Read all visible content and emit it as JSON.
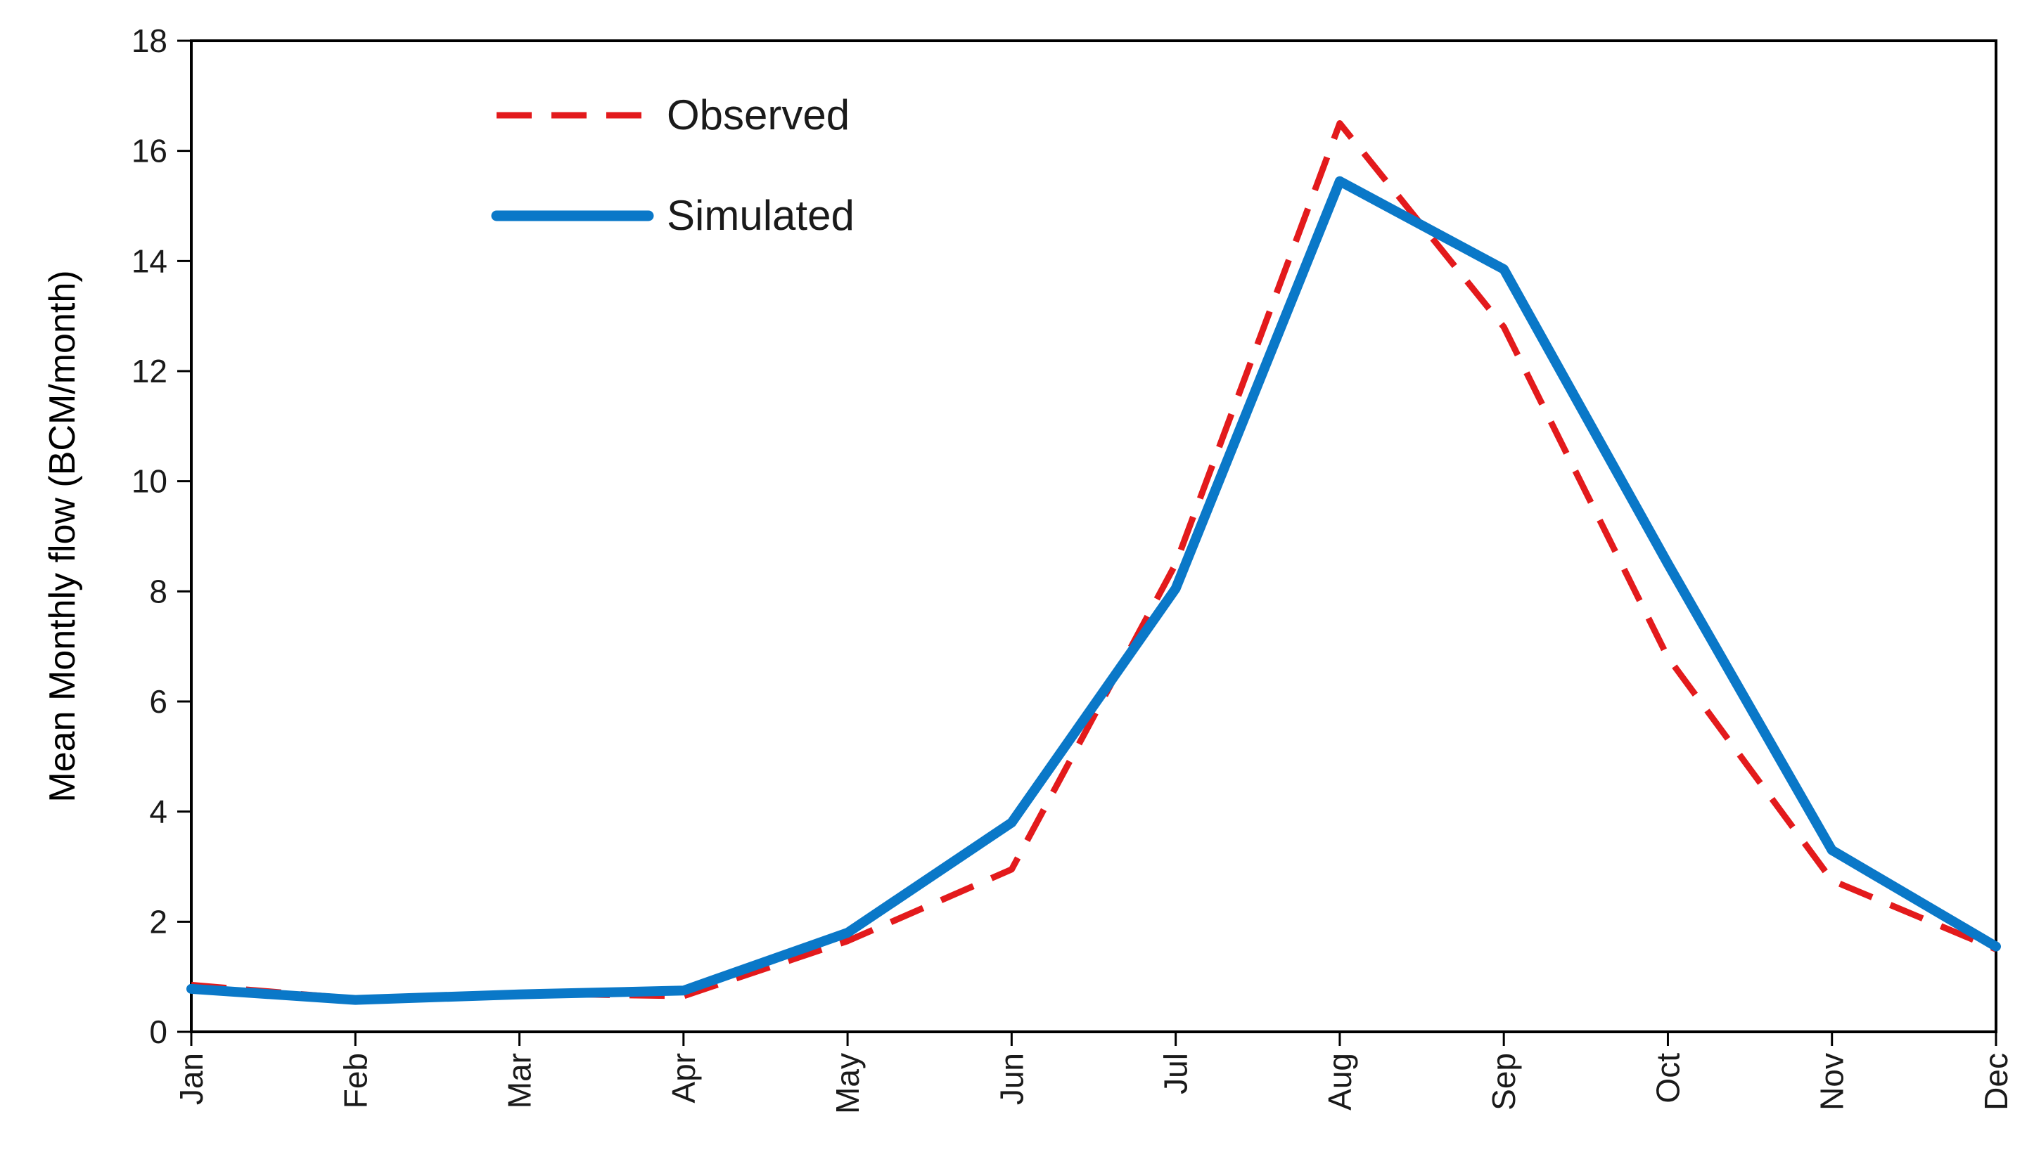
{
  "chart_data": {
    "type": "line",
    "title": "",
    "xlabel": "",
    "ylabel": "Mean Monthly flow (BCM/month)",
    "categories": [
      "Jan",
      "Feb",
      "Mar",
      "Apr",
      "May",
      "Jun",
      "Jul",
      "Aug",
      "Sep",
      "Oct",
      "Nov",
      "Dec"
    ],
    "ylim": [
      0,
      18
    ],
    "yticks": [
      0,
      2,
      4,
      6,
      8,
      10,
      12,
      14,
      16,
      18
    ],
    "grid": false,
    "legend_position": "top-left",
    "series": [
      {
        "name": "Observed",
        "style": "dashed",
        "color": "#e31a1c",
        "values": [
          0.85,
          0.6,
          0.7,
          0.65,
          1.65,
          2.95,
          8.5,
          16.5,
          12.8,
          6.8,
          2.75,
          1.5
        ]
      },
      {
        "name": "Simulated",
        "style": "solid",
        "color": "#0a78c8",
        "values": [
          0.78,
          0.58,
          0.68,
          0.75,
          1.8,
          3.8,
          8.05,
          15.45,
          13.85,
          8.5,
          3.3,
          1.55
        ]
      }
    ]
  }
}
